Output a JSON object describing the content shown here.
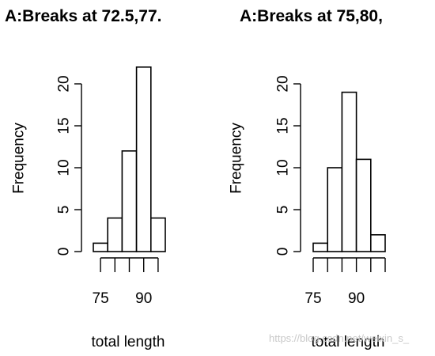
{
  "chart_data": [
    {
      "type": "histogram",
      "title": "A:Breaks at 72.5,77.",
      "xlabel": "total length",
      "ylabel": "Frequency",
      "bin_edges": [
        72.5,
        77.5,
        82.5,
        87.5,
        92.5,
        97.5
      ],
      "counts": [
        1,
        4,
        12,
        22,
        4
      ],
      "x_ticks": [
        75,
        80,
        85,
        90,
        95
      ],
      "x_tick_labels": [
        "75",
        "",
        "",
        "90",
        ""
      ],
      "ylim": [
        0,
        22
      ],
      "y_ticks": [
        0,
        5,
        10,
        15,
        20
      ],
      "y_tick_labels": [
        "0",
        "5",
        "10",
        "15",
        "20"
      ]
    },
    {
      "type": "histogram",
      "title": "A:Breaks at 75,80,",
      "xlabel": "total length",
      "ylabel": "Frequency",
      "bin_edges": [
        75,
        80,
        85,
        90,
        95,
        100
      ],
      "counts": [
        1,
        10,
        19,
        11,
        2
      ],
      "x_ticks": [
        75,
        80,
        85,
        90,
        95,
        100
      ],
      "x_tick_labels": [
        "75",
        "",
        "",
        "90",
        "",
        ""
      ],
      "ylim": [
        0,
        20
      ],
      "y_ticks": [
        0,
        5,
        10,
        15,
        20
      ],
      "y_tick_labels": [
        "0",
        "5",
        "10",
        "15",
        "20"
      ]
    }
  ],
  "watermark": "https://blog.csdn.net/weixin_s_"
}
